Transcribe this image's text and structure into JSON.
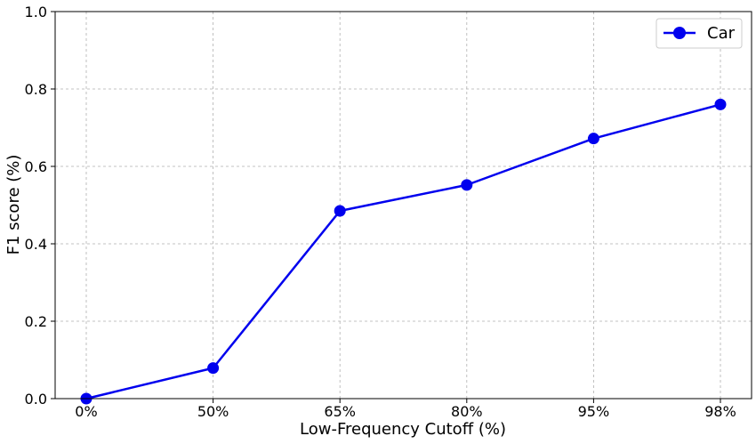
{
  "chart_data": {
    "type": "line",
    "title": "",
    "xlabel": "Low-Frequency Cutoff (%)",
    "ylabel": "F1 score (%)",
    "categories": [
      "0%",
      "50%",
      "65%",
      "80%",
      "95%",
      "98%"
    ],
    "ylim": [
      0.0,
      1.0
    ],
    "yticks": [
      "0.0",
      "0.2",
      "0.4",
      "0.6",
      "0.8",
      "1.0"
    ],
    "grid": true,
    "legend_position": "top-right",
    "series": [
      {
        "name": "Car",
        "color": "#0000ee",
        "marker": "circle",
        "values": [
          0.0,
          0.079,
          0.485,
          0.552,
          0.672,
          0.76
        ]
      }
    ]
  }
}
